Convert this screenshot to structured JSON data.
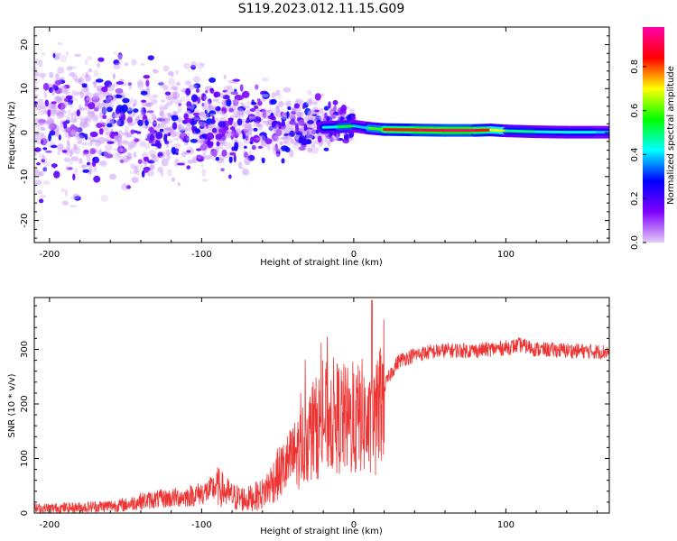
{
  "title": "S119.2023.012.11.15.G09",
  "colors": {
    "snr_line": "#ee3333",
    "spectrogram_ridge": "#dd2222",
    "scatter": "#8a2be2"
  },
  "chart_data": [
    {
      "type": "heatmap",
      "title": "S119.2023.012.11.15.G09",
      "xlabel": "Height of straight line (km)",
      "ylabel": "Frequency (Hz)",
      "xlim": [
        -210,
        168
      ],
      "ylim": [
        -25,
        24
      ],
      "xticks": [
        -200,
        -100,
        0,
        100
      ],
      "yticks": [
        -20,
        -10,
        0,
        10,
        20
      ],
      "colorbar": {
        "label": "Normalized spectral amplitude",
        "range": [
          0,
          0.98
        ],
        "ticks": [
          0.0,
          0.2,
          0.4,
          0.6,
          0.8
        ],
        "colormap": [
          "#e3ccf6",
          "#7f00ff",
          "#0000ff",
          "#00ffff",
          "#00ff00",
          "#ffff00",
          "#ff0000",
          "#ff00aa"
        ]
      },
      "ridge": {
        "x": [
          -20,
          -10,
          0,
          10,
          20,
          40,
          60,
          80,
          90,
          100,
          120,
          140,
          160,
          168
        ],
        "frequency": [
          1.2,
          1.3,
          1.5,
          1.0,
          0.7,
          0.6,
          0.5,
          0.5,
          0.6,
          0.4,
          0.2,
          0.1,
          0.1,
          0.1
        ],
        "amplitude": [
          0.45,
          0.55,
          0.4,
          0.6,
          0.85,
          0.92,
          0.95,
          0.85,
          0.7,
          0.5,
          0.45,
          0.45,
          0.4,
          0.4
        ]
      }
    },
    {
      "type": "line",
      "xlabel": "Height of straight line (km)",
      "ylabel": "SNR (10 * v/v)",
      "xlim": [
        -210,
        168
      ],
      "ylim": [
        0,
        395
      ],
      "xticks": [
        -200,
        -100,
        0,
        100
      ],
      "yticks": [
        0,
        100,
        200,
        300
      ],
      "series": [
        {
          "x": [
            -210,
            -180,
            -150,
            -140,
            -130,
            -110,
            -95,
            -90,
            -80,
            -70,
            -60,
            -50,
            -40,
            -30,
            -20,
            -15,
            -10,
            -5,
            0,
            5,
            10,
            15,
            20,
            25,
            30,
            40,
            50,
            60,
            80,
            100,
            110,
            120,
            140,
            160,
            168
          ],
          "y": [
            8,
            10,
            15,
            22,
            25,
            30,
            40,
            50,
            30,
            25,
            35,
            70,
            100,
            140,
            170,
            180,
            175,
            170,
            160,
            180,
            150,
            175,
            230,
            260,
            280,
            290,
            295,
            298,
            298,
            303,
            308,
            300,
            298,
            296,
            295
          ]
        }
      ]
    }
  ]
}
